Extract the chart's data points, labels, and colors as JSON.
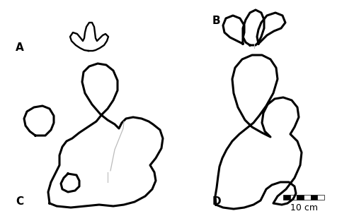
{
  "bg_color": "#ffffff",
  "line_color": "#000000",
  "line_width": 2.2,
  "thin_line_color": "#bbbbbb",
  "label_A": "A",
  "label_B": "B",
  "label_C": "C",
  "label_D": "D",
  "scale_label": "10 cm",
  "label_fontsize": 11,
  "scale_fontsize": 9,
  "figsize": [
    5.0,
    3.06
  ],
  "dpi": 100,
  "xlim": [
    0,
    500
  ],
  "ylim": [
    0,
    306
  ]
}
